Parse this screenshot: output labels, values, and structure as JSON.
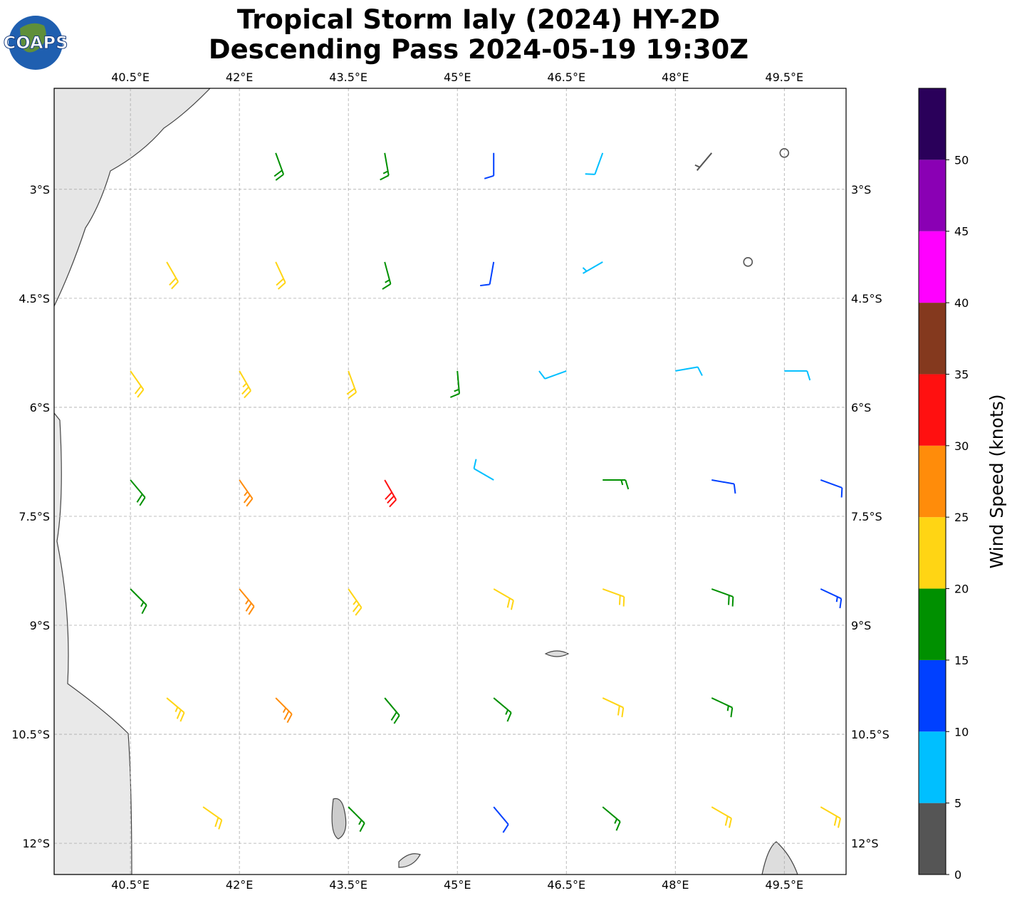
{
  "map": {
    "title": [
      "Tropical Storm Ialy (2024) HY-2D",
      "Descending Pass 2024-05-19 19:30Z"
    ],
    "logo": "COAPS",
    "lonlim": [
      39.45,
      50.35
    ],
    "latlim": [
      -12.43,
      -1.61
    ],
    "lonticks": [
      {
        "value": 40.5,
        "label": "40.5°E"
      },
      {
        "value": 42,
        "label": "42°E"
      },
      {
        "value": 43.5,
        "label": "43.5°E"
      },
      {
        "value": 45,
        "label": "45°E"
      },
      {
        "value": 46.5,
        "label": "46.5°E"
      },
      {
        "value": 48,
        "label": "48°E"
      },
      {
        "value": 49.5,
        "label": "49.5°E"
      }
    ],
    "latticks": [
      {
        "value": -3,
        "label": "3°S"
      },
      {
        "value": -4.5,
        "label": "4.5°S"
      },
      {
        "value": -6,
        "label": "6°S"
      },
      {
        "value": -7.5,
        "label": "7.5°S"
      },
      {
        "value": -9,
        "label": "9°S"
      },
      {
        "value": -10.5,
        "label": "10.5°S"
      },
      {
        "value": -12,
        "label": "12°S"
      }
    ],
    "grid": true,
    "colorbar": {
      "label": "Wind Speed (knots)",
      "bounds": [
        0,
        5,
        10,
        15,
        20,
        25,
        30,
        35,
        40,
        45,
        50,
        55
      ],
      "colors": [
        "#555555",
        "#00bfff",
        "#0040ff",
        "#009000",
        "#ffd514",
        "#ff8c0a",
        "#ff1010",
        "#84391e",
        "#ff00ff",
        "#8a00b4",
        "#2a005a"
      ],
      "ticks": [
        0,
        5,
        10,
        15,
        20,
        25,
        30,
        35,
        40,
        45,
        50
      ]
    },
    "barbs": [
      {
        "lon": 42.5,
        "lat": -2.5,
        "speed": 18,
        "dir": 160
      },
      {
        "lon": 44,
        "lat": -2.5,
        "speed": 17,
        "dir": 170
      },
      {
        "lon": 45.5,
        "lat": -2.5,
        "speed": 12,
        "dir": 180
      },
      {
        "lon": 47,
        "lat": -2.5,
        "speed": 8,
        "dir": 200
      },
      {
        "lon": 48.5,
        "lat": -2.5,
        "speed": 3,
        "dir": 220
      },
      {
        "lon": 49.5,
        "lat": -2.5,
        "speed": 2,
        "dir": 0
      },
      {
        "lon": 41,
        "lat": -4,
        "speed": 22,
        "dir": 150
      },
      {
        "lon": 42.5,
        "lat": -4,
        "speed": 22,
        "dir": 155
      },
      {
        "lon": 44,
        "lat": -4,
        "speed": 17,
        "dir": 165
      },
      {
        "lon": 45.5,
        "lat": -4,
        "speed": 11,
        "dir": 190
      },
      {
        "lon": 47,
        "lat": -4,
        "speed": 6,
        "dir": 240
      },
      {
        "lon": 49,
        "lat": -4,
        "speed": 2,
        "dir": 0
      },
      {
        "lon": 40.5,
        "lat": -5.5,
        "speed": 22,
        "dir": 145
      },
      {
        "lon": 42,
        "lat": -5.5,
        "speed": 24,
        "dir": 150
      },
      {
        "lon": 43.5,
        "lat": -5.5,
        "speed": 22,
        "dir": 160
      },
      {
        "lon": 45,
        "lat": -5.5,
        "speed": 16,
        "dir": 175
      },
      {
        "lon": 46.5,
        "lat": -5.5,
        "speed": 9,
        "dir": 250
      },
      {
        "lon": 48,
        "lat": -5.5,
        "speed": 8,
        "dir": 80
      },
      {
        "lon": 49.5,
        "lat": -5.5,
        "speed": 8,
        "dir": 90
      },
      {
        "lon": 40.5,
        "lat": -7,
        "speed": 18,
        "dir": 140
      },
      {
        "lon": 42,
        "lat": -7,
        "speed": 26,
        "dir": 145
      },
      {
        "lon": 44,
        "lat": -7,
        "speed": 31,
        "dir": 150
      },
      {
        "lon": 45.5,
        "lat": -7,
        "speed": 8,
        "dir": 300
      },
      {
        "lon": 47,
        "lat": -7,
        "speed": 17,
        "dir": 90
      },
      {
        "lon": 48.5,
        "lat": -7,
        "speed": 12,
        "dir": 100
      },
      {
        "lon": 50,
        "lat": -7,
        "speed": 12,
        "dir": 110
      },
      {
        "lon": 40.5,
        "lat": -8.5,
        "speed": 17,
        "dir": 135
      },
      {
        "lon": 42,
        "lat": -8.5,
        "speed": 27,
        "dir": 140
      },
      {
        "lon": 43.5,
        "lat": -8.5,
        "speed": 24,
        "dir": 145
      },
      {
        "lon": 45.5,
        "lat": -8.5,
        "speed": 22,
        "dir": 120
      },
      {
        "lon": 47,
        "lat": -8.5,
        "speed": 22,
        "dir": 110
      },
      {
        "lon": 48.5,
        "lat": -8.5,
        "speed": 18,
        "dir": 110
      },
      {
        "lon": 50,
        "lat": -8.5,
        "speed": 13,
        "dir": 115
      },
      {
        "lon": 41,
        "lat": -10,
        "speed": 23,
        "dir": 130
      },
      {
        "lon": 42.5,
        "lat": -10,
        "speed": 26,
        "dir": 135
      },
      {
        "lon": 44,
        "lat": -10,
        "speed": 18,
        "dir": 140
      },
      {
        "lon": 45.5,
        "lat": -10,
        "speed": 16,
        "dir": 130
      },
      {
        "lon": 47,
        "lat": -10,
        "speed": 22,
        "dir": 115
      },
      {
        "lon": 48.5,
        "lat": -10,
        "speed": 17,
        "dir": 115
      },
      {
        "lon": 41.5,
        "lat": -11.5,
        "speed": 22,
        "dir": 125
      },
      {
        "lon": 43.5,
        "lat": -11.5,
        "speed": 17,
        "dir": 135
      },
      {
        "lon": 45.5,
        "lat": -11.5,
        "speed": 12,
        "dir": 140
      },
      {
        "lon": 47,
        "lat": -11.5,
        "speed": 15,
        "dir": 130
      },
      {
        "lon": 48.5,
        "lat": -11.5,
        "speed": 22,
        "dir": 120
      },
      {
        "lon": 50,
        "lat": -11.5,
        "speed": 20,
        "dir": 120
      }
    ]
  }
}
